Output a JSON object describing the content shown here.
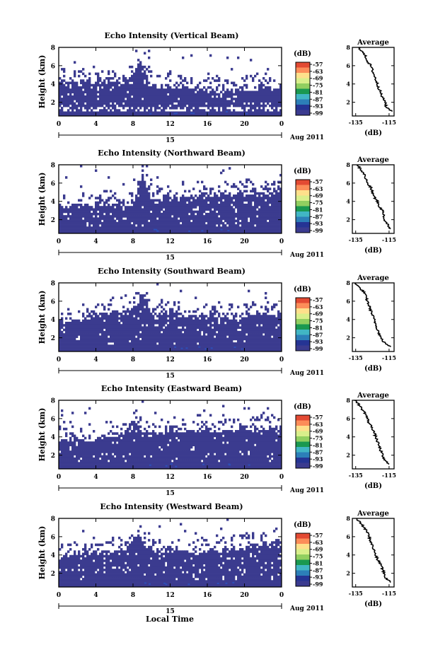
{
  "figure": {
    "xlabel": "Local Time",
    "date_label": "Aug 2011",
    "cbar_unit": "(dB)",
    "avg_title": "Average",
    "avg_xlabel": "(dB)"
  },
  "chart_data": [
    {
      "type": "heatmap",
      "title": "Echo Intensity (Vertical Beam)",
      "ylabel": "Height (km)",
      "x_ticks": [
        "0",
        "4",
        "8",
        "12",
        "16",
        "20",
        "0"
      ],
      "x_day": "15",
      "y_ticks": [
        "8",
        "6",
        "4",
        "2"
      ],
      "xlim": [
        0,
        24
      ],
      "ylim": [
        0.5,
        8
      ],
      "colorbar_ticks": [
        "-57",
        "-63",
        "-69",
        "-75",
        "-81",
        "-87",
        "-93",
        "-99"
      ],
      "colorbar_colors": [
        "#e34a33",
        "#fc8d59",
        "#fee08b",
        "#d9ef8b",
        "#91cf60",
        "#1a9850",
        "#41b6c4",
        "#2c7fb8",
        "#253494",
        "#3b3b8f"
      ],
      "field_color": "#3b3b8f",
      "boundary_km": [
        [
          0,
          4.3
        ],
        [
          3,
          4.1
        ],
        [
          6,
          4.4
        ],
        [
          8,
          4.2
        ],
        [
          10,
          3.9
        ],
        [
          12,
          3.8
        ],
        [
          14,
          3.6
        ],
        [
          16,
          3.5
        ],
        [
          18,
          3.4
        ],
        [
          20,
          3.4
        ],
        [
          22,
          3.6
        ],
        [
          24,
          3.6
        ]
      ],
      "gap_km": [
        [
          0,
          1.3
        ],
        [
          24,
          1.3
        ]
      ],
      "plume": {
        "hours": [
          7.5,
          10
        ],
        "top_km": 6.5
      },
      "average": {
        "title": "Average",
        "xlabel": "(dB)",
        "x_ticks": [
          "-135",
          "-115"
        ],
        "y_ticks": [
          "8",
          "6",
          "4",
          "2"
        ],
        "xlim": [
          -137,
          -112
        ],
        "ylim": [
          0.5,
          8
        ],
        "profile": [
          [
            8,
            -133
          ],
          [
            7.5,
            -131
          ],
          [
            7,
            -129
          ],
          [
            6.5,
            -128
          ],
          [
            6,
            -126
          ],
          [
            5.5,
            -125
          ],
          [
            5,
            -124
          ],
          [
            4.5,
            -123
          ],
          [
            4,
            -122
          ],
          [
            3.5,
            -121
          ],
          [
            3,
            -120
          ],
          [
            2.5,
            -119
          ],
          [
            2,
            -117
          ],
          [
            1.5,
            -117
          ],
          [
            1,
            -113
          ]
        ]
      }
    },
    {
      "type": "heatmap",
      "title": "Echo Intensity (Northward Beam)",
      "ylabel": "Height (km)",
      "x_ticks": [
        "0",
        "4",
        "8",
        "12",
        "16",
        "20",
        "0"
      ],
      "x_day": "15",
      "y_ticks": [
        "8",
        "6",
        "4",
        "2"
      ],
      "xlim": [
        0,
        24
      ],
      "ylim": [
        0.5,
        8
      ],
      "colorbar_ticks": [
        "-57",
        "-63",
        "-69",
        "-75",
        "-81",
        "-87",
        "-93",
        "-99"
      ],
      "colorbar_colors": [
        "#e34a33",
        "#fc8d59",
        "#fee08b",
        "#d9ef8b",
        "#91cf60",
        "#1a9850",
        "#41b6c4",
        "#2c7fb8",
        "#253494",
        "#3b3b8f"
      ],
      "field_color": "#3b3b8f",
      "boundary_km": [
        [
          0,
          3.5
        ],
        [
          3,
          3.4
        ],
        [
          6,
          3.9
        ],
        [
          8,
          3.6
        ],
        [
          10,
          4.1
        ],
        [
          12,
          4.3
        ],
        [
          14,
          4.5
        ],
        [
          16,
          4.6
        ],
        [
          18,
          4.8
        ],
        [
          20,
          4.9
        ],
        [
          22,
          4.8
        ],
        [
          24,
          4.9
        ]
      ],
      "gap_km": [],
      "plume": {
        "hours": [
          8,
          10
        ],
        "top_km": 7.0
      },
      "average": {
        "title": "Average",
        "xlabel": "(dB)",
        "x_ticks": [
          "-135",
          "-115"
        ],
        "y_ticks": [
          "8",
          "6",
          "4",
          "2"
        ],
        "xlim": [
          -137,
          -112
        ],
        "ylim": [
          0.5,
          8
        ],
        "profile": [
          [
            8,
            -134
          ],
          [
            7.5,
            -132
          ],
          [
            7,
            -130
          ],
          [
            6.5,
            -129
          ],
          [
            6,
            -128
          ],
          [
            5.5,
            -126
          ],
          [
            5,
            -125
          ],
          [
            4.5,
            -124
          ],
          [
            4,
            -122
          ],
          [
            3.5,
            -121
          ],
          [
            3,
            -119
          ],
          [
            2.5,
            -118
          ],
          [
            2,
            -118
          ],
          [
            1.5,
            -116
          ],
          [
            1,
            -114
          ]
        ]
      }
    },
    {
      "type": "heatmap",
      "title": "Echo Intensity (Southward Beam)",
      "ylabel": "Height (km)",
      "x_ticks": [
        "0",
        "4",
        "8",
        "12",
        "16",
        "20",
        "0"
      ],
      "x_day": "15",
      "y_ticks": [
        "8",
        "6",
        "4",
        "2"
      ],
      "xlim": [
        0,
        24
      ],
      "ylim": [
        0.5,
        8
      ],
      "colorbar_ticks": [
        "-57",
        "-63",
        "-69",
        "-75",
        "-81",
        "-87",
        "-93",
        "-99"
      ],
      "colorbar_colors": [
        "#e34a33",
        "#fc8d59",
        "#fee08b",
        "#d9ef8b",
        "#91cf60",
        "#1a9850",
        "#41b6c4",
        "#2c7fb8",
        "#253494",
        "#3b3b8f"
      ],
      "field_color": "#3b3b8f",
      "boundary_km": [
        [
          0,
          3.8
        ],
        [
          3,
          4.2
        ],
        [
          6,
          4.8
        ],
        [
          8,
          5.0
        ],
        [
          10,
          4.5
        ],
        [
          12,
          4.9
        ],
        [
          14,
          4.2
        ],
        [
          16,
          4.4
        ],
        [
          18,
          4.2
        ],
        [
          20,
          4.4
        ],
        [
          22,
          4.6
        ],
        [
          24,
          4.4
        ]
      ],
      "gap_km": [],
      "plume": {
        "hours": [
          8,
          10
        ],
        "top_km": 6.8
      },
      "average": {
        "title": "Average",
        "xlabel": "(dB)",
        "x_ticks": [
          "-135",
          "-115"
        ],
        "y_ticks": [
          "8",
          "6",
          "4",
          "2"
        ],
        "xlim": [
          -137,
          -112
        ],
        "ylim": [
          0.5,
          8
        ],
        "profile": [
          [
            8,
            -135
          ],
          [
            7.5,
            -133
          ],
          [
            7,
            -130
          ],
          [
            6.5,
            -129
          ],
          [
            6,
            -128
          ],
          [
            5.5,
            -127
          ],
          [
            5,
            -126
          ],
          [
            4.5,
            -125
          ],
          [
            4,
            -124
          ],
          [
            3.5,
            -123
          ],
          [
            3,
            -122
          ],
          [
            2.5,
            -121
          ],
          [
            2,
            -120
          ],
          [
            1.5,
            -118
          ],
          [
            1,
            -114
          ]
        ]
      }
    },
    {
      "type": "heatmap",
      "title": "Echo Intensity (Eastward Beam)",
      "ylabel": "Height (km)",
      "x_ticks": [
        "0",
        "4",
        "8",
        "12",
        "16",
        "20",
        "0"
      ],
      "x_day": "15",
      "y_ticks": [
        "8",
        "6",
        "4",
        "2"
      ],
      "xlim": [
        0,
        24
      ],
      "ylim": [
        0.5,
        8
      ],
      "colorbar_ticks": [
        "-57",
        "-63",
        "-69",
        "-75",
        "-81",
        "-87",
        "-93",
        "-99"
      ],
      "colorbar_colors": [
        "#e34a33",
        "#fc8d59",
        "#fee08b",
        "#d9ef8b",
        "#91cf60",
        "#1a9850",
        "#41b6c4",
        "#2c7fb8",
        "#253494",
        "#3b3b8f"
      ],
      "field_color": "#3b3b8f",
      "boundary_km": [
        [
          0,
          3.6
        ],
        [
          3,
          3.8
        ],
        [
          6,
          4.2
        ],
        [
          8,
          4.5
        ],
        [
          10,
          4.4
        ],
        [
          12,
          4.6
        ],
        [
          14,
          4.8
        ],
        [
          16,
          4.8
        ],
        [
          18,
          4.7
        ],
        [
          20,
          4.8
        ],
        [
          22,
          5.0
        ],
        [
          24,
          5.0
        ]
      ],
      "gap_km": [],
      "plume": {
        "hours": [
          7,
          9
        ],
        "top_km": 6.0
      },
      "average": {
        "title": "Average",
        "xlabel": "(dB)",
        "x_ticks": [
          "-135",
          "-115"
        ],
        "y_ticks": [
          "8",
          "6",
          "4",
          "2"
        ],
        "xlim": [
          -137,
          -112
        ],
        "ylim": [
          0.5,
          8
        ],
        "profile": [
          [
            8,
            -135
          ],
          [
            7.5,
            -133
          ],
          [
            7,
            -131
          ],
          [
            6.5,
            -129
          ],
          [
            6,
            -128
          ],
          [
            5.5,
            -127
          ],
          [
            5,
            -125
          ],
          [
            4.5,
            -124
          ],
          [
            4,
            -123
          ],
          [
            3.5,
            -122
          ],
          [
            3,
            -121
          ],
          [
            2.5,
            -120
          ],
          [
            2,
            -119
          ],
          [
            1.5,
            -118
          ],
          [
            1,
            -115
          ]
        ]
      }
    },
    {
      "type": "heatmap",
      "title": "Echo Intensity (Westward Beam)",
      "ylabel": "Height (km)",
      "x_ticks": [
        "0",
        "4",
        "8",
        "12",
        "16",
        "20",
        "0"
      ],
      "x_day": "15",
      "y_ticks": [
        "8",
        "6",
        "4",
        "2"
      ],
      "xlim": [
        0,
        24
      ],
      "ylim": [
        0.5,
        8
      ],
      "colorbar_ticks": [
        "-57",
        "-63",
        "-69",
        "-75",
        "-81",
        "-87",
        "-93",
        "-99"
      ],
      "colorbar_colors": [
        "#e34a33",
        "#fc8d59",
        "#fee08b",
        "#d9ef8b",
        "#91cf60",
        "#1a9850",
        "#41b6c4",
        "#2c7fb8",
        "#253494",
        "#3b3b8f"
      ],
      "field_color": "#3b3b8f",
      "boundary_km": [
        [
          0,
          3.8
        ],
        [
          3,
          4.2
        ],
        [
          6,
          4.4
        ],
        [
          8,
          4.8
        ],
        [
          10,
          4.6
        ],
        [
          12,
          4.6
        ],
        [
          14,
          4.5
        ],
        [
          16,
          4.3
        ],
        [
          18,
          4.6
        ],
        [
          20,
          4.9
        ],
        [
          22,
          5.2
        ],
        [
          24,
          5.6
        ]
      ],
      "gap_km": [],
      "plume": {
        "hours": [
          7.5,
          9.5
        ],
        "top_km": 6.5
      },
      "average": {
        "title": "Average",
        "xlabel": "(dB)",
        "x_ticks": [
          "-135",
          "-115"
        ],
        "y_ticks": [
          "8",
          "6",
          "4",
          "2"
        ],
        "xlim": [
          -137,
          -112
        ],
        "ylim": [
          0.5,
          8
        ],
        "profile": [
          [
            8,
            -135
          ],
          [
            7.5,
            -132
          ],
          [
            7,
            -130
          ],
          [
            6.5,
            -128
          ],
          [
            6,
            -127
          ],
          [
            5.5,
            -126
          ],
          [
            5,
            -125
          ],
          [
            4.5,
            -124
          ],
          [
            4,
            -123
          ],
          [
            3.5,
            -122
          ],
          [
            3,
            -120
          ],
          [
            2.5,
            -119
          ],
          [
            2,
            -118
          ],
          [
            1.5,
            -117
          ],
          [
            1,
            -114
          ]
        ]
      }
    }
  ]
}
